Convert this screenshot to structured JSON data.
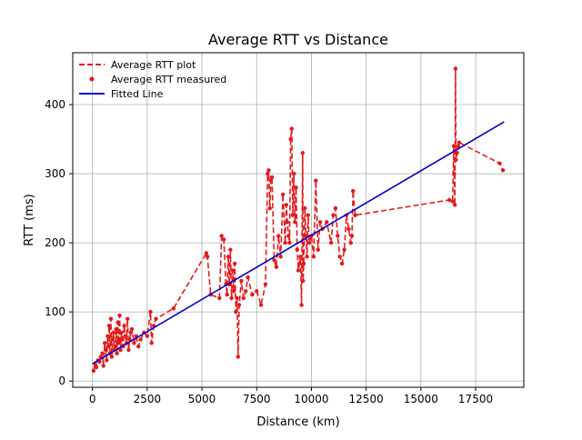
{
  "colors": {
    "plot_line": "#e41a1c",
    "measured_points": "#e41a1c",
    "fitted_line": "#0000cc",
    "grid": "#b0b0b0",
    "axes": "#000000"
  },
  "chart_data": {
    "type": "line",
    "title": "Average RTT vs Distance",
    "xlabel": "Distance (km)",
    "ylabel": "RTT (ms)",
    "xlim": [
      -900,
      19700
    ],
    "ylim": [
      -9,
      475
    ],
    "xticks": [
      0,
      2500,
      5000,
      7500,
      10000,
      12500,
      15000,
      17500
    ],
    "xtick_labels": [
      "0",
      "2500",
      "5000",
      "7500",
      "10000",
      "12500",
      "15000",
      "17500"
    ],
    "yticks": [
      0,
      100,
      200,
      300,
      400
    ],
    "ytick_labels": [
      "0",
      "100",
      "200",
      "300",
      "400"
    ],
    "grid": true,
    "legend_position": "top-left",
    "series": [
      {
        "name": "Average RTT plot",
        "style": "dashed-line",
        "x": [
          50,
          120,
          180,
          250,
          320,
          380,
          450,
          500,
          560,
          600,
          650,
          700,
          720,
          760,
          800,
          840,
          880,
          920,
          960,
          1000,
          1040,
          1080,
          1120,
          1160,
          1200,
          1240,
          1280,
          1320,
          1360,
          1400,
          1450,
          1500,
          1550,
          1600,
          1650,
          1700,
          1750,
          1800,
          1900,
          2000,
          2100,
          2200,
          2350,
          2500,
          2650,
          2700,
          2800,
          2900,
          3700,
          5200,
          5250,
          5400,
          5800,
          5900,
          6000,
          6100,
          6150,
          6200,
          6250,
          6300,
          6350,
          6400,
          6450,
          6500,
          6550,
          6600,
          6650,
          6700,
          6800,
          6900,
          7000,
          7100,
          7300,
          7500,
          7700,
          7900,
          8000,
          8050,
          8100,
          8150,
          8200,
          8300,
          8400,
          8500,
          8600,
          8700,
          8800,
          8850,
          8900,
          8950,
          9000,
          9050,
          9100,
          9150,
          9200,
          9250,
          9300,
          9350,
          9400,
          9450,
          9500,
          9550,
          9600,
          9620,
          9650,
          9700,
          9750,
          9800,
          9850,
          9900,
          10000,
          10100,
          10200,
          10300,
          10400,
          10500,
          10700,
          10900,
          11000,
          11100,
          11200,
          11300,
          11400,
          11500,
          11600,
          11700,
          11800,
          11850,
          11900,
          12000,
          16300,
          16450,
          16500,
          16520,
          16550,
          16580,
          16600,
          16650,
          16700,
          16750,
          18600,
          18750
        ],
        "y": [
          15,
          25,
          20,
          30,
          28,
          35,
          40,
          22,
          55,
          45,
          30,
          65,
          50,
          80,
          40,
          90,
          35,
          60,
          70,
          45,
          50,
          75,
          40,
          85,
          55,
          95,
          45,
          70,
          60,
          50,
          80,
          65,
          55,
          90,
          45,
          60,
          70,
          75,
          55,
          65,
          50,
          60,
          70,
          65,
          100,
          55,
          80,
          90,
          105,
          185,
          180,
          125,
          120,
          210,
          205,
          140,
          125,
          180,
          140,
          190,
          120,
          160,
          130,
          170,
          100,
          120,
          35,
          110,
          145,
          120,
          130,
          150,
          125,
          130,
          110,
          140,
          300,
          305,
          250,
          290,
          295,
          175,
          165,
          210,
          180,
          270,
          200,
          255,
          230,
          210,
          200,
          350,
          365,
          240,
          300,
          230,
          280,
          190,
          160,
          170,
          180,
          110,
          330,
          145,
          170,
          250,
          210,
          180,
          240,
          200,
          210,
          180,
          290,
          190,
          230,
          220,
          230,
          200,
          240,
          250,
          210,
          180,
          170,
          190,
          240,
          220,
          200,
          210,
          275,
          240,
          262,
          260,
          340,
          300,
          255,
          452,
          320,
          330,
          340,
          345,
          315,
          305
        ]
      },
      {
        "name": "Average RTT measured",
        "style": "points",
        "x": [
          50,
          120,
          180,
          250,
          320,
          380,
          450,
          500,
          560,
          600,
          650,
          700,
          720,
          760,
          800,
          840,
          880,
          920,
          960,
          1000,
          1040,
          1080,
          1120,
          1160,
          1200,
          1240,
          1280,
          1320,
          1360,
          1400,
          1450,
          1500,
          1550,
          1600,
          1650,
          1700,
          1750,
          1800,
          1900,
          2000,
          2100,
          2200,
          2350,
          2500,
          2650,
          2700,
          2800,
          2900,
          3700,
          5200,
          5250,
          5400,
          5800,
          5900,
          6000,
          6100,
          6150,
          6200,
          6250,
          6300,
          6350,
          6400,
          6450,
          6500,
          6550,
          6600,
          6650,
          6700,
          6800,
          6900,
          7000,
          7100,
          7300,
          7500,
          7700,
          7900,
          8000,
          8050,
          8100,
          8150,
          8200,
          8300,
          8400,
          8500,
          8600,
          8700,
          8800,
          8850,
          8900,
          8950,
          9000,
          9050,
          9100,
          9150,
          9200,
          9250,
          9300,
          9350,
          9400,
          9450,
          9500,
          9550,
          9600,
          9620,
          9650,
          9700,
          9750,
          9800,
          9850,
          9900,
          10000,
          10100,
          10200,
          10300,
          10400,
          10500,
          10700,
          10900,
          11000,
          11100,
          11200,
          11300,
          11400,
          11500,
          11600,
          11700,
          11800,
          11850,
          11900,
          12000,
          16300,
          16450,
          16500,
          16520,
          16550,
          16580,
          16600,
          16650,
          16700,
          16750,
          18600,
          18750
        ],
        "y": [
          15,
          25,
          20,
          30,
          28,
          35,
          40,
          22,
          55,
          45,
          30,
          65,
          50,
          80,
          40,
          90,
          35,
          60,
          70,
          45,
          50,
          75,
          40,
          85,
          55,
          95,
          45,
          70,
          60,
          50,
          80,
          65,
          55,
          90,
          45,
          60,
          70,
          75,
          55,
          65,
          50,
          60,
          70,
          65,
          100,
          55,
          80,
          90,
          105,
          185,
          180,
          125,
          120,
          210,
          205,
          140,
          125,
          180,
          140,
          190,
          120,
          160,
          130,
          170,
          100,
          120,
          35,
          110,
          145,
          120,
          130,
          150,
          125,
          130,
          110,
          140,
          300,
          305,
          250,
          290,
          295,
          175,
          165,
          210,
          180,
          270,
          200,
          255,
          230,
          210,
          200,
          350,
          365,
          240,
          300,
          230,
          280,
          190,
          160,
          170,
          180,
          110,
          330,
          145,
          170,
          250,
          210,
          180,
          240,
          200,
          210,
          180,
          290,
          190,
          230,
          220,
          230,
          200,
          240,
          250,
          210,
          180,
          170,
          190,
          240,
          220,
          200,
          210,
          275,
          240,
          262,
          260,
          340,
          300,
          255,
          452,
          320,
          330,
          340,
          345,
          315,
          305
        ]
      },
      {
        "name": "Fitted Line",
        "style": "solid-line",
        "x": [
          0,
          18800
        ],
        "y": [
          25,
          375
        ]
      }
    ]
  }
}
